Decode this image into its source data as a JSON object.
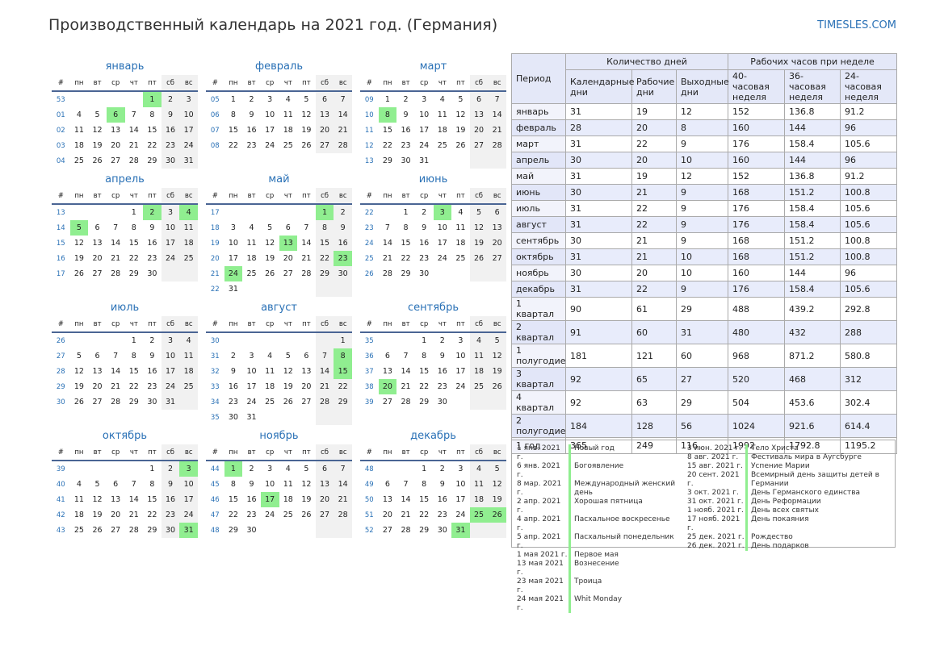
{
  "header": {
    "title": "Производственный календарь на 2021 год. (Германия)",
    "site": "TIMESLES.COM"
  },
  "weekdays": [
    "#",
    "пн",
    "вт",
    "ср",
    "чт",
    "пт",
    "сб",
    "вс"
  ],
  "months": [
    {
      "name": "январь",
      "highlighted_days": [
        1,
        6
      ],
      "weeks": [
        {
          "week": "53",
          "days": [
            null,
            null,
            null,
            null,
            1,
            2,
            3
          ]
        },
        {
          "week": "01",
          "days": [
            4,
            5,
            6,
            7,
            8,
            9,
            10
          ]
        },
        {
          "week": "02",
          "days": [
            11,
            12,
            13,
            14,
            15,
            16,
            17
          ]
        },
        {
          "week": "03",
          "days": [
            18,
            19,
            20,
            21,
            22,
            23,
            24
          ]
        },
        {
          "week": "04",
          "days": [
            25,
            26,
            27,
            28,
            29,
            30,
            31
          ]
        }
      ]
    },
    {
      "name": "февраль",
      "highlighted_days": [],
      "weeks": [
        {
          "week": "05",
          "days": [
            1,
            2,
            3,
            4,
            5,
            6,
            7
          ]
        },
        {
          "week": "06",
          "days": [
            8,
            9,
            10,
            11,
            12,
            13,
            14
          ]
        },
        {
          "week": "07",
          "days": [
            15,
            16,
            17,
            18,
            19,
            20,
            21
          ]
        },
        {
          "week": "08",
          "days": [
            22,
            23,
            24,
            25,
            26,
            27,
            28
          ]
        }
      ]
    },
    {
      "name": "март",
      "highlighted_days": [
        8
      ],
      "weeks": [
        {
          "week": "09",
          "days": [
            1,
            2,
            3,
            4,
            5,
            6,
            7
          ]
        },
        {
          "week": "10",
          "days": [
            8,
            9,
            10,
            11,
            12,
            13,
            14
          ]
        },
        {
          "week": "11",
          "days": [
            15,
            16,
            17,
            18,
            19,
            20,
            21
          ]
        },
        {
          "week": "12",
          "days": [
            22,
            23,
            24,
            25,
            26,
            27,
            28
          ]
        },
        {
          "week": "13",
          "days": [
            29,
            30,
            31,
            null,
            null,
            null,
            null
          ]
        }
      ]
    },
    {
      "name": "апрель",
      "highlighted_days": [
        2,
        4,
        5
      ],
      "weeks": [
        {
          "week": "13",
          "days": [
            null,
            null,
            null,
            1,
            2,
            3,
            4
          ]
        },
        {
          "week": "14",
          "days": [
            5,
            6,
            7,
            8,
            9,
            10,
            11
          ]
        },
        {
          "week": "15",
          "days": [
            12,
            13,
            14,
            15,
            16,
            17,
            18
          ]
        },
        {
          "week": "16",
          "days": [
            19,
            20,
            21,
            22,
            23,
            24,
            25
          ]
        },
        {
          "week": "17",
          "days": [
            26,
            27,
            28,
            29,
            30,
            null,
            null
          ]
        }
      ]
    },
    {
      "name": "май",
      "highlighted_days": [
        1,
        13,
        23,
        24
      ],
      "weeks": [
        {
          "week": "17",
          "days": [
            null,
            null,
            null,
            null,
            null,
            1,
            2
          ]
        },
        {
          "week": "18",
          "days": [
            3,
            4,
            5,
            6,
            7,
            8,
            9
          ]
        },
        {
          "week": "19",
          "days": [
            10,
            11,
            12,
            13,
            14,
            15,
            16
          ]
        },
        {
          "week": "20",
          "days": [
            17,
            18,
            19,
            20,
            21,
            22,
            23
          ]
        },
        {
          "week": "21",
          "days": [
            24,
            25,
            26,
            27,
            28,
            29,
            30
          ]
        },
        {
          "week": "22",
          "days": [
            31,
            null,
            null,
            null,
            null,
            null,
            null
          ]
        }
      ]
    },
    {
      "name": "июнь",
      "highlighted_days": [
        3
      ],
      "weeks": [
        {
          "week": "22",
          "days": [
            null,
            1,
            2,
            3,
            4,
            5,
            6
          ]
        },
        {
          "week": "23",
          "days": [
            7,
            8,
            9,
            10,
            11,
            12,
            13
          ]
        },
        {
          "week": "24",
          "days": [
            14,
            15,
            16,
            17,
            18,
            19,
            20
          ]
        },
        {
          "week": "25",
          "days": [
            21,
            22,
            23,
            24,
            25,
            26,
            27
          ]
        },
        {
          "week": "26",
          "days": [
            28,
            29,
            30,
            null,
            null,
            null,
            null
          ]
        }
      ]
    },
    {
      "name": "июль",
      "highlighted_days": [],
      "weeks": [
        {
          "week": "26",
          "days": [
            null,
            null,
            null,
            1,
            2,
            3,
            4
          ]
        },
        {
          "week": "27",
          "days": [
            5,
            6,
            7,
            8,
            9,
            10,
            11
          ]
        },
        {
          "week": "28",
          "days": [
            12,
            13,
            14,
            15,
            16,
            17,
            18
          ]
        },
        {
          "week": "29",
          "days": [
            19,
            20,
            21,
            22,
            23,
            24,
            25
          ]
        },
        {
          "week": "30",
          "days": [
            26,
            27,
            28,
            29,
            30,
            31,
            null
          ]
        }
      ]
    },
    {
      "name": "август",
      "highlighted_days": [
        8,
        15
      ],
      "weeks": [
        {
          "week": "30",
          "days": [
            null,
            null,
            null,
            null,
            null,
            null,
            1
          ]
        },
        {
          "week": "31",
          "days": [
            2,
            3,
            4,
            5,
            6,
            7,
            8
          ]
        },
        {
          "week": "32",
          "days": [
            9,
            10,
            11,
            12,
            13,
            14,
            15
          ]
        },
        {
          "week": "33",
          "days": [
            16,
            17,
            18,
            19,
            20,
            21,
            22
          ]
        },
        {
          "week": "34",
          "days": [
            23,
            24,
            25,
            26,
            27,
            28,
            29
          ]
        },
        {
          "week": "35",
          "days": [
            30,
            31,
            null,
            null,
            null,
            null,
            null
          ]
        }
      ]
    },
    {
      "name": "сентябрь",
      "highlighted_days": [
        20
      ],
      "weeks": [
        {
          "week": "35",
          "days": [
            null,
            null,
            1,
            2,
            3,
            4,
            5
          ]
        },
        {
          "week": "36",
          "days": [
            6,
            7,
            8,
            9,
            10,
            11,
            12
          ]
        },
        {
          "week": "37",
          "days": [
            13,
            14,
            15,
            16,
            17,
            18,
            19
          ]
        },
        {
          "week": "38",
          "days": [
            20,
            21,
            22,
            23,
            24,
            25,
            26
          ]
        },
        {
          "week": "39",
          "days": [
            27,
            28,
            29,
            30,
            null,
            null,
            null
          ]
        }
      ]
    },
    {
      "name": "октябрь",
      "highlighted_days": [
        3,
        31
      ],
      "weeks": [
        {
          "week": "39",
          "days": [
            null,
            null,
            null,
            null,
            1,
            2,
            3
          ]
        },
        {
          "week": "40",
          "days": [
            4,
            5,
            6,
            7,
            8,
            9,
            10
          ]
        },
        {
          "week": "41",
          "days": [
            11,
            12,
            13,
            14,
            15,
            16,
            17
          ]
        },
        {
          "week": "42",
          "days": [
            18,
            19,
            20,
            21,
            22,
            23,
            24
          ]
        },
        {
          "week": "43",
          "days": [
            25,
            26,
            27,
            28,
            29,
            30,
            31
          ]
        }
      ]
    },
    {
      "name": "ноябрь",
      "highlighted_days": [
        1,
        17
      ],
      "weeks": [
        {
          "week": "44",
          "days": [
            1,
            2,
            3,
            4,
            5,
            6,
            7
          ]
        },
        {
          "week": "45",
          "days": [
            8,
            9,
            10,
            11,
            12,
            13,
            14
          ]
        },
        {
          "week": "46",
          "days": [
            15,
            16,
            17,
            18,
            19,
            20,
            21
          ]
        },
        {
          "week": "47",
          "days": [
            22,
            23,
            24,
            25,
            26,
            27,
            28
          ]
        },
        {
          "week": "48",
          "days": [
            29,
            30,
            null,
            null,
            null,
            null,
            null
          ]
        }
      ]
    },
    {
      "name": "декабрь",
      "highlighted_days": [
        25,
        26,
        31
      ],
      "weeks": [
        {
          "week": "48",
          "days": [
            null,
            null,
            1,
            2,
            3,
            4,
            5
          ]
        },
        {
          "week": "49",
          "days": [
            6,
            7,
            8,
            9,
            10,
            11,
            12
          ]
        },
        {
          "week": "50",
          "days": [
            13,
            14,
            15,
            16,
            17,
            18,
            19
          ]
        },
        {
          "week": "51",
          "days": [
            20,
            21,
            22,
            23,
            24,
            25,
            26
          ]
        },
        {
          "week": "52",
          "days": [
            27,
            28,
            29,
            30,
            31,
            null,
            null
          ]
        }
      ]
    }
  ],
  "table": {
    "header": {
      "period": "Период",
      "days_group": "Количество дней",
      "hours_group": "Рабочих часов при неделе",
      "columns": [
        "Календарные дни",
        "Рабочие дни",
        "Выходные дни",
        "40-часовая неделя",
        "36-часовая неделя",
        "24-часовая неделя"
      ]
    },
    "rows": [
      [
        "январь",
        31,
        19,
        12,
        152,
        136.8,
        91.2
      ],
      [
        "февраль",
        28,
        20,
        8,
        160,
        144,
        96
      ],
      [
        "март",
        31,
        22,
        9,
        176,
        158.4,
        105.6
      ],
      [
        "апрель",
        30,
        20,
        10,
        160,
        144,
        96
      ],
      [
        "май",
        31,
        19,
        12,
        152,
        136.8,
        91.2
      ],
      [
        "июнь",
        30,
        21,
        9,
        168,
        151.2,
        100.8
      ],
      [
        "июль",
        31,
        22,
        9,
        176,
        158.4,
        105.6
      ],
      [
        "август",
        31,
        22,
        9,
        176,
        158.4,
        105.6
      ],
      [
        "сентябрь",
        30,
        21,
        9,
        168,
        151.2,
        100.8
      ],
      [
        "октябрь",
        31,
        21,
        10,
        168,
        151.2,
        100.8
      ],
      [
        "ноябрь",
        30,
        20,
        10,
        160,
        144,
        96
      ],
      [
        "декабрь",
        31,
        22,
        9,
        176,
        158.4,
        105.6
      ],
      [
        "1 квартал",
        90,
        61,
        29,
        488,
        439.2,
        292.8
      ],
      [
        "2 квартал",
        91,
        60,
        31,
        480,
        432,
        288
      ],
      [
        "1 полугодие",
        181,
        121,
        60,
        968,
        871.2,
        580.8
      ],
      [
        "3 квартал",
        92,
        65,
        27,
        520,
        468,
        312
      ],
      [
        "4 квартал",
        92,
        63,
        29,
        504,
        453.6,
        302.4
      ],
      [
        "2 полугодие",
        184,
        128,
        56,
        1024,
        921.6,
        614.4
      ],
      [
        "1 год",
        365,
        249,
        116,
        1992,
        1792.8,
        1195.2
      ]
    ]
  },
  "holidays": [
    [
      [
        "1 янв. 2021 г.",
        "Новый год"
      ],
      [
        "6 янв. 2021 г.",
        "Богоявление"
      ],
      [
        "8 мар. 2021 г.",
        "Международный женский день"
      ],
      [
        "2 апр. 2021 г.",
        "Хорошая пятница"
      ],
      [
        "4 апр. 2021 г.",
        "Пасхальное воскресенье"
      ],
      [
        "5 апр. 2021 г.",
        "Пасхальный понедельник"
      ],
      [
        "1 мая 2021 г.",
        "Первое мая"
      ],
      [
        "13 мая 2021 г.",
        "Вознесение"
      ],
      [
        "23 мая 2021 г.",
        "Троица"
      ],
      [
        "24 мая 2021 г.",
        "Whit Monday"
      ]
    ],
    [
      [
        "3 июн. 2021 г.",
        "Тело Христа"
      ],
      [
        "8 авг. 2021 г.",
        "Фестиваль мира в Аугсбурге"
      ],
      [
        "15 авг. 2021 г.",
        "Успение Марии"
      ],
      [
        "20 сент. 2021 г.",
        "Всемирный день защиты детей в Германии"
      ],
      [
        "3 окт. 2021 г.",
        "День Германского единства"
      ],
      [
        "31 окт. 2021 г.",
        "День Реформации"
      ],
      [
        "1 нояб. 2021 г.",
        "День всех святых"
      ],
      [
        "17 нояб. 2021 г.",
        "День покаяния"
      ],
      [
        "25 дек. 2021 г.",
        "Рождество"
      ],
      [
        "26 дек. 2021 г.",
        "День подарков"
      ]
    ]
  ]
}
